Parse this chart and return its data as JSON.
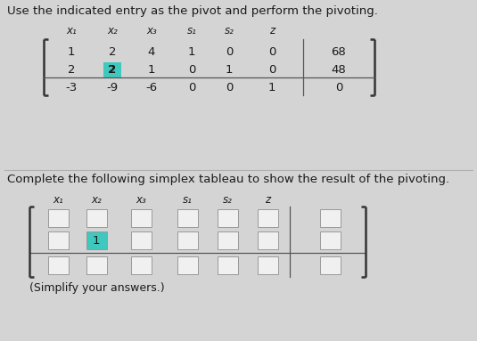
{
  "bg_color": "#d4d4d4",
  "title1": "Use the indicated entry as the pivot and perform the pivoting.",
  "title2": "Complete the following simplex tableau to show the result of the pivoting.",
  "footer": "(Simplify your answers.)",
  "col_headers": [
    "x₁",
    "x₂",
    "x₃",
    "s₁",
    "s₂",
    "z"
  ],
  "matrix1": [
    [
      1,
      2,
      4,
      1,
      0,
      0,
      68
    ],
    [
      2,
      2,
      1,
      0,
      1,
      0,
      48
    ],
    [
      -3,
      -9,
      -6,
      0,
      0,
      1,
      0
    ]
  ],
  "pivot1_row": 1,
  "pivot1_col": 1,
  "pivot_color": "#3ec8be",
  "matrix2_rows": 3,
  "matrix2_cols": 7,
  "pivot2_row": 1,
  "pivot2_col": 1,
  "pivot2_value": "1",
  "box_color": "#f0f0f0",
  "box_border": "#999999",
  "text_color": "#1a1a1a",
  "font_size_title": 9.5,
  "font_size_label": 8.5,
  "font_size_cell": 9.5
}
